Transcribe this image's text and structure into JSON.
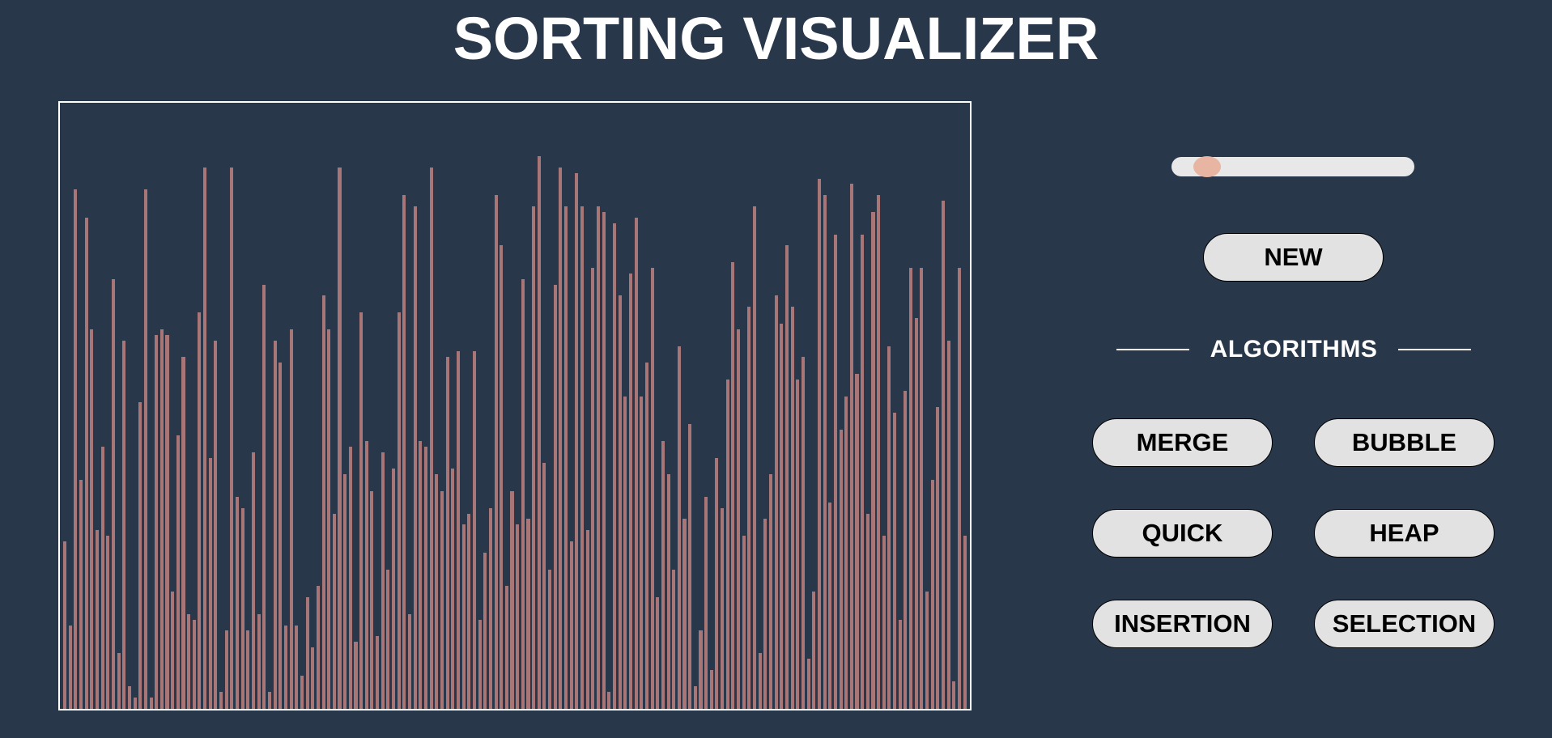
{
  "title": "SORTING VISUALIZER",
  "slider": {
    "value": 10,
    "min": 0,
    "max": 100
  },
  "controls": {
    "new_label": "NEW"
  },
  "algorithms": {
    "heading": "ALGORITHMS",
    "merge": "MERGE",
    "bubble": "BUBBLE",
    "quick": "QUICK",
    "heap": "HEAP",
    "insertion": "INSERTION",
    "selection": "SELECTION"
  },
  "colors": {
    "background": "#29374b",
    "bar": "#a87676",
    "slider_thumb": "#e7b5a1",
    "button_bg": "#e2e2e2",
    "frame": "#ffffff"
  },
  "array": {
    "max": 100,
    "values": [
      30,
      15,
      93,
      41,
      88,
      68,
      32,
      47,
      31,
      77,
      10,
      66,
      4,
      2,
      55,
      93,
      2,
      67,
      68,
      67,
      21,
      49,
      63,
      17,
      16,
      71,
      97,
      45,
      66,
      3,
      14,
      97,
      38,
      36,
      14,
      46,
      17,
      76,
      3,
      66,
      62,
      15,
      68,
      15,
      6,
      20,
      11,
      22,
      74,
      68,
      35,
      97,
      42,
      47,
      12,
      71,
      48,
      39,
      13,
      46,
      25,
      43,
      71,
      92,
      17,
      90,
      48,
      47,
      97,
      42,
      39,
      63,
      43,
      64,
      33,
      35,
      64,
      16,
      28,
      36,
      92,
      83,
      22,
      39,
      33,
      77,
      34,
      90,
      99,
      44,
      25,
      76,
      97,
      90,
      30,
      96,
      90,
      32,
      79,
      90,
      89,
      3,
      87,
      74,
      56,
      78,
      88,
      56,
      62,
      79,
      20,
      48,
      42,
      25,
      65,
      34,
      51,
      4,
      14,
      38,
      7,
      45,
      36,
      59,
      80,
      68,
      31,
      72,
      90,
      10,
      34,
      42,
      74,
      69,
      83,
      72,
      59,
      63,
      9,
      21,
      95,
      92,
      37,
      85,
      50,
      56,
      94,
      60,
      85,
      35,
      89,
      92,
      31,
      65,
      53,
      16,
      57,
      79,
      70,
      79,
      21,
      41,
      54,
      91,
      66,
      5,
      79,
      31
    ]
  }
}
